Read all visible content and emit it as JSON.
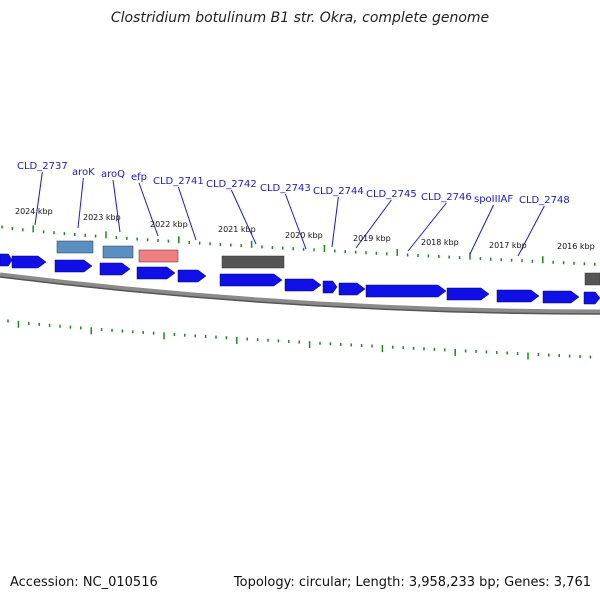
{
  "title": "Clostridium botulinum B1 str. Okra, complete genome",
  "footer": {
    "accession": "Accession: NC_010516",
    "summary": "Topology: circular; Length: 3,958,233 bp; Genes: 3,761"
  },
  "colors": {
    "cds": "#1010e6",
    "rna": "#5b8ec2",
    "misc": "#555555",
    "highlight": "#f08080",
    "ticks": "#1a8a1a",
    "label": "#1a1ad0"
  },
  "kbp_ticks": [
    "2024 kbp",
    "2023 kbp",
    "2022 kbp",
    "2021 kbp",
    "2020 kbp",
    "2019 kbp",
    "2018 kbp",
    "2017 kbp",
    "2016 kbp"
  ],
  "gene_labels": [
    "CLD_2737",
    "aroK",
    "aroQ",
    "efp",
    "CLD_2741",
    "CLD_2742",
    "CLD_2743",
    "CLD_2744",
    "CLD_2745",
    "CLD_2746",
    "spoIIIAF",
    "CLD_2748"
  ]
}
